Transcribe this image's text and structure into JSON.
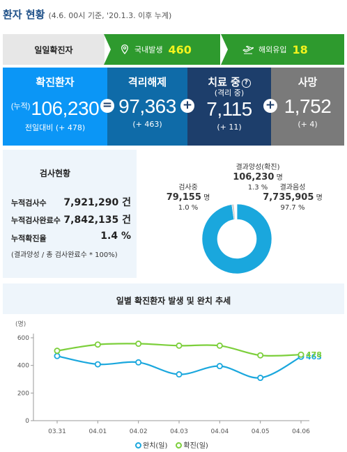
{
  "header": {
    "title": "환자 현황",
    "subtitle": "(4.6. 00시 기준, '20.1.3. 이후 누계)"
  },
  "daily": {
    "label": "일일확진자",
    "domestic_label": "국내발생",
    "domestic_value": "460",
    "abroad_label": "해외유입",
    "abroad_value": "18"
  },
  "summary": {
    "confirmed": {
      "title": "확진환자",
      "prefix": "(누적)",
      "value": "106,230",
      "change": "전일대비 (+ 478)"
    },
    "released": {
      "title": "격리해제",
      "value": "97,363",
      "change": "(+ 463)"
    },
    "treating": {
      "title": "치료 중",
      "sub": "(격리 중)",
      "help": "?",
      "value": "7,115",
      "change": "(+ 11)"
    },
    "deaths": {
      "title": "사망",
      "value": "1,752",
      "change": "(+ 4)"
    },
    "ops": [
      "=",
      "+",
      "+"
    ]
  },
  "tests": {
    "title": "검사현황",
    "rows": [
      {
        "label": "누적검사수",
        "value": "7,921,290 건"
      },
      {
        "label": "누적검사완료수",
        "value": "7,842,135 건"
      },
      {
        "label": "누적확진율",
        "value": "1.4 %"
      }
    ],
    "note": "(결과양성 / 총 검사완료수 * 100%)",
    "pie": {
      "positive": {
        "label": "결과양성(확진)",
        "value": "106,230",
        "unit": "명",
        "pct": "1.3 %"
      },
      "testing": {
        "label": "검사중",
        "value": "79,155",
        "unit": "명",
        "pct": "1.0 %"
      },
      "negative": {
        "label": "결과음성",
        "value": "7,735,905",
        "unit": "명",
        "pct": "97.7 %"
      },
      "colors": {
        "negative": "#1aa7dd",
        "positive": "#ffffff",
        "testing": "#d0d0d0"
      }
    }
  },
  "chart_data": {
    "type": "line",
    "title": "일별 확진환자 발생 및 완치 추세",
    "ylabel": "(명)",
    "ylim": [
      0,
      600
    ],
    "yticks": [
      0,
      200,
      400,
      600
    ],
    "categories": [
      "03.31",
      "04.01",
      "04.02",
      "04.03",
      "04.04",
      "04.05",
      "04.06"
    ],
    "series": [
      {
        "name": "완치(일)",
        "color": "#1aa7dd",
        "values": [
          468,
          408,
          422,
          335,
          395,
          310,
          463
        ]
      },
      {
        "name": "확진(일)",
        "color": "#7ccf3b",
        "values": [
          506,
          551,
          557,
          543,
          543,
          473,
          478
        ]
      }
    ],
    "end_labels": [
      "463",
      "478"
    ],
    "grid": false
  }
}
